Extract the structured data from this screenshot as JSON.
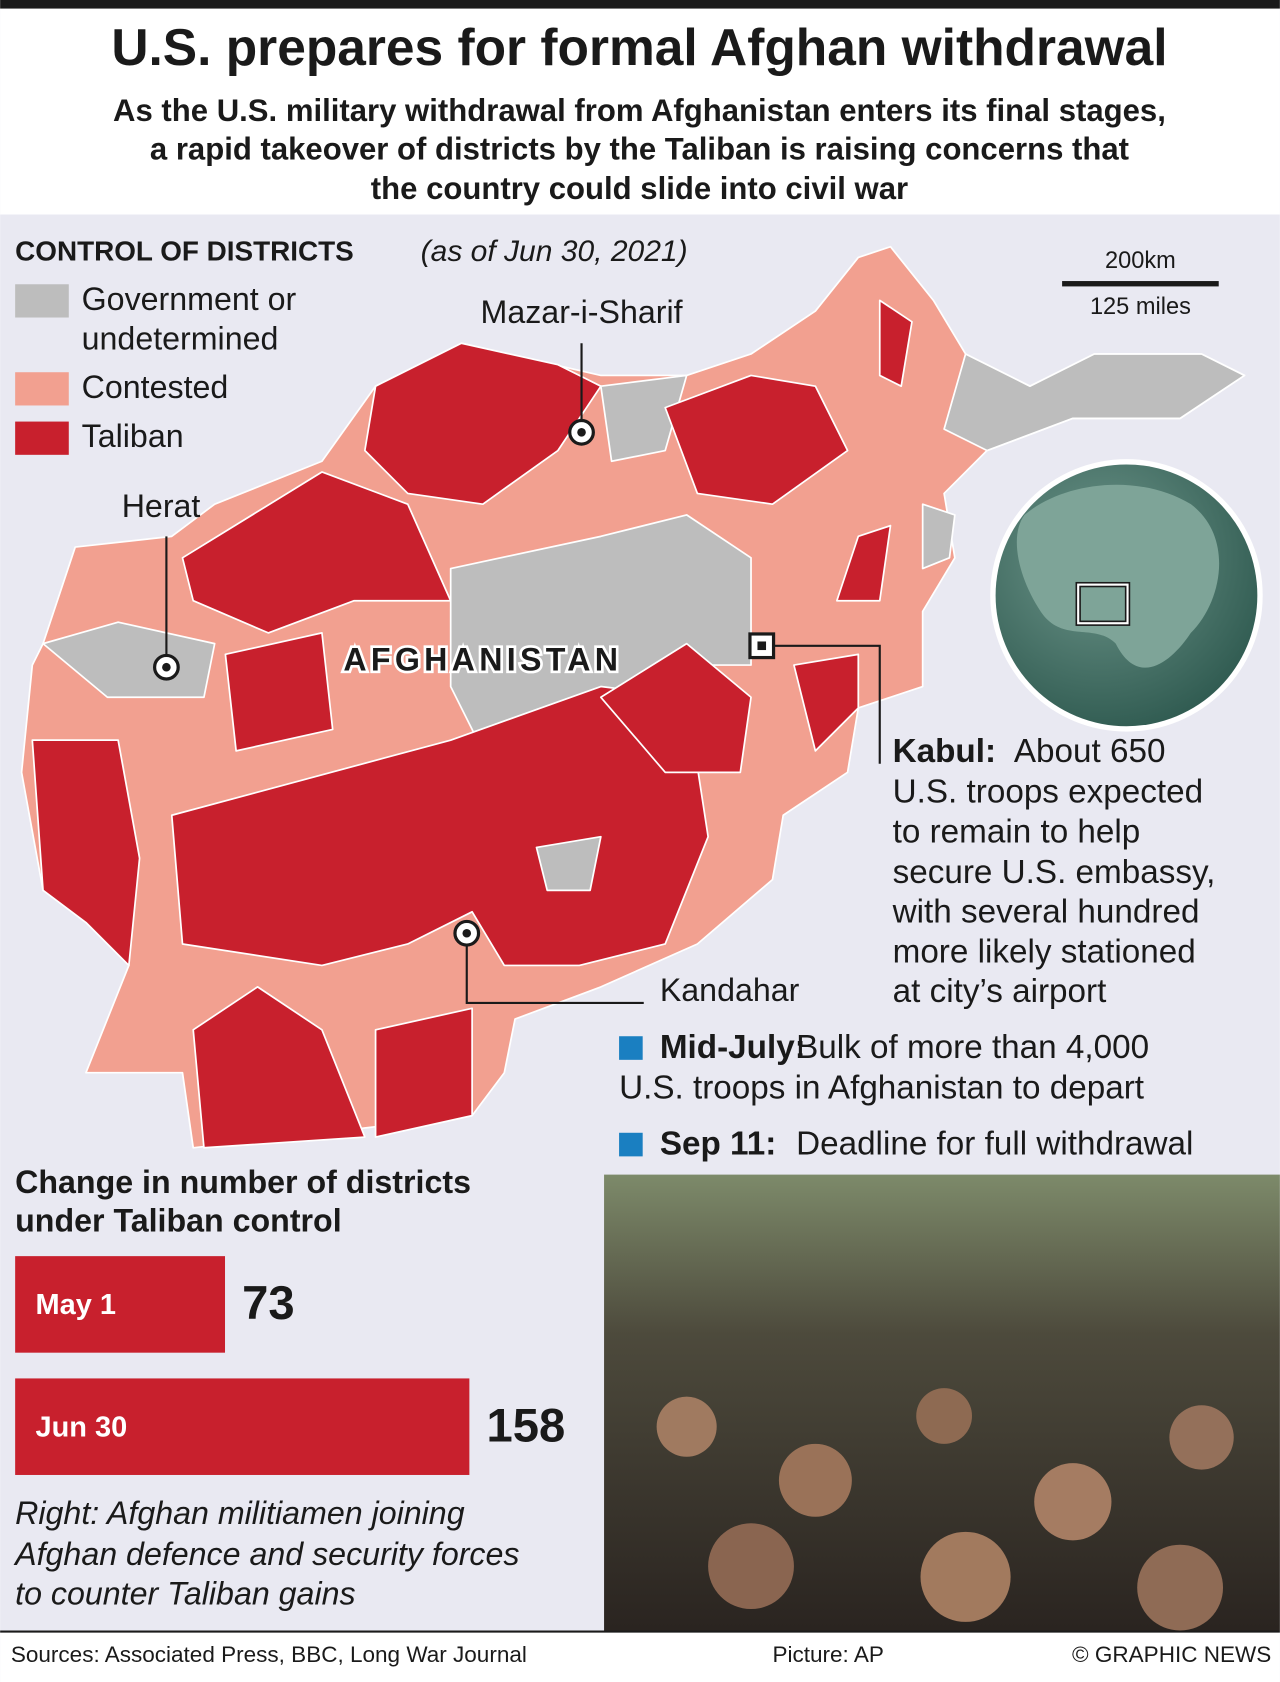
{
  "header": {
    "title": "U.S. prepares for formal Afghan withdrawal",
    "subtitle": [
      "As the U.S. military withdrawal from Afghanistan enters its final stages,",
      "a rapid takeover of districts by the Taliban is raising concerns that",
      "the country could slide into civil war"
    ]
  },
  "map": {
    "legend_title": "CONTROL OF DISTRICTS",
    "legend_date": "(as of Jun 30, 2021)",
    "legend": [
      {
        "label": [
          "Government or",
          "undetermined"
        ],
        "color": "#bdbdbd"
      },
      {
        "label": [
          "Contested"
        ],
        "color": "#f2a090"
      },
      {
        "label": [
          "Taliban"
        ],
        "color": "#c8202d"
      }
    ],
    "country": "AFGHANISTAN",
    "cities": [
      "Mazar-i-Sharif",
      "Herat",
      "Kandahar"
    ],
    "scale": {
      "km": "200km",
      "miles": "125 miles"
    }
  },
  "kabul": {
    "label": "Kabul:",
    "lines": [
      "About 650",
      "U.S. troops expected",
      "to remain to help",
      "secure U.S. embassy,",
      "with several hundred",
      "more likely stationed",
      "at city’s airport"
    ]
  },
  "timeline": [
    {
      "date": "Mid-July:",
      "text": [
        "Bulk of more than 4,000",
        "U.S. troops in Afghanistan to depart"
      ]
    },
    {
      "date": "Sep 11:",
      "text": [
        "Deadline for full withdrawal"
      ]
    }
  ],
  "chart_data": {
    "type": "bar",
    "title": [
      "Change in number of districts",
      "under Taliban control"
    ],
    "categories": [
      "May 1",
      "Jun 30"
    ],
    "values": [
      73,
      158
    ],
    "color": "#c8202d"
  },
  "caption": [
    "Right: Afghan militiamen joining",
    "Afghan defence and security forces",
    "to counter Taliban gains"
  ],
  "footer": {
    "sources": "Sources: Associated Press, BBC, Long War Journal",
    "picture": "Picture: AP",
    "copyright": "© GRAPHIC NEWS"
  }
}
